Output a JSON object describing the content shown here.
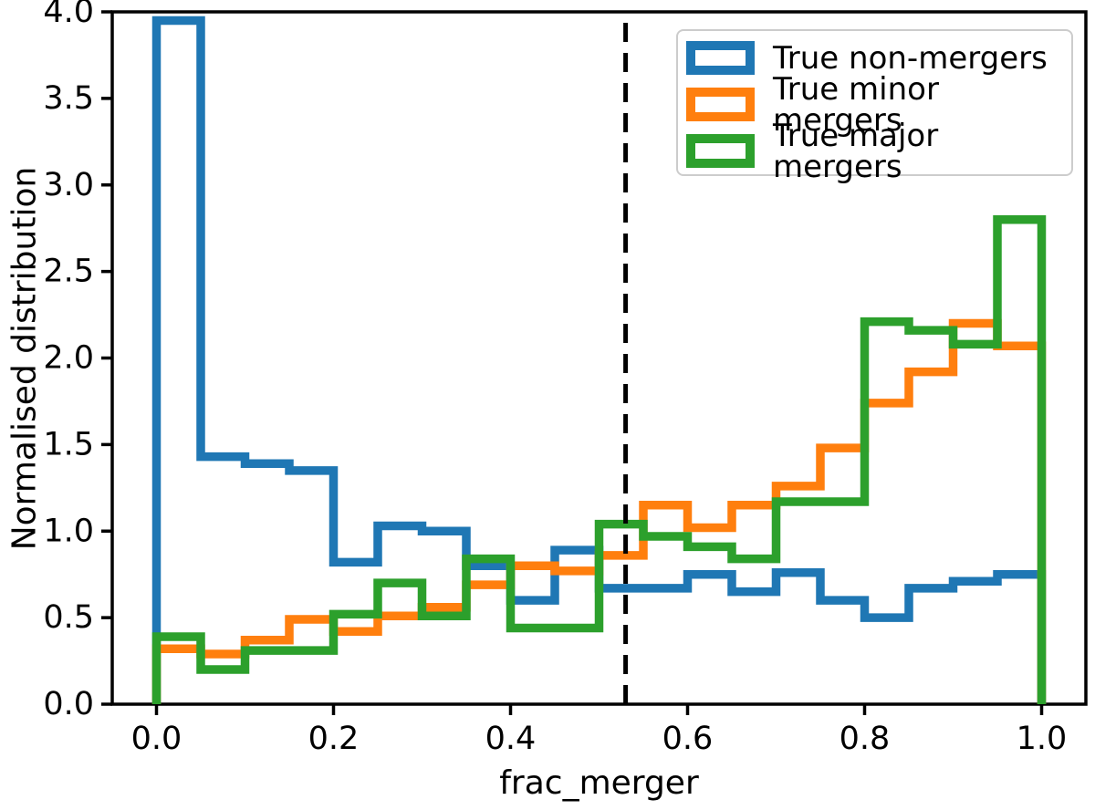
{
  "figure": {
    "xlabel": "frac_merger",
    "ylabel": "Normalised distribution"
  },
  "legend": {
    "position": "upper right",
    "items": [
      {
        "label": "True non-mergers",
        "color": "#1f77b4"
      },
      {
        "label": "True minor mergers",
        "color": "#ff7f0e"
      },
      {
        "label": "True major mergers",
        "color": "#2ca02c"
      }
    ]
  },
  "chart_data": {
    "type": "histogram-step",
    "title": "",
    "xlabel": "frac_merger",
    "ylabel": "Normalised distribution",
    "xlim": [
      -0.05,
      1.05
    ],
    "ylim": [
      0,
      4.0
    ],
    "grid": false,
    "legend_position": "upper right",
    "x_ticks": [
      0.0,
      0.2,
      0.4,
      0.6,
      0.8,
      1.0
    ],
    "x_tick_labels": [
      "0.0",
      "0.2",
      "0.4",
      "0.6",
      "0.8",
      "1.0"
    ],
    "y_ticks": [
      0.0,
      0.5,
      1.0,
      1.5,
      2.0,
      2.5,
      3.0,
      3.5,
      4.0
    ],
    "y_tick_labels": [
      "0.0",
      "0.5",
      "1.0",
      "1.5",
      "2.0",
      "2.5",
      "3.0",
      "3.5",
      "4.0"
    ],
    "bin_edges": [
      0.0,
      0.05,
      0.1,
      0.15,
      0.2,
      0.25,
      0.3,
      0.35,
      0.4,
      0.45,
      0.5,
      0.55,
      0.6,
      0.65,
      0.7,
      0.75,
      0.8,
      0.85,
      0.9,
      0.95,
      1.0
    ],
    "series": [
      {
        "name": "True non-mergers",
        "color": "#1f77b4",
        "values": [
          3.95,
          1.43,
          1.39,
          1.35,
          0.82,
          1.03,
          1.0,
          0.8,
          0.6,
          0.89,
          0.67,
          0.67,
          0.75,
          0.65,
          0.76,
          0.6,
          0.5,
          0.67,
          0.71,
          0.75
        ]
      },
      {
        "name": "True minor mergers",
        "color": "#ff7f0e",
        "values": [
          0.32,
          0.29,
          0.37,
          0.49,
          0.42,
          0.51,
          0.56,
          0.69,
          0.8,
          0.77,
          0.86,
          1.15,
          1.02,
          1.15,
          1.26,
          1.48,
          1.74,
          1.92,
          2.2,
          2.07
        ]
      },
      {
        "name": "True major mergers",
        "color": "#2ca02c",
        "values": [
          0.39,
          0.2,
          0.31,
          0.31,
          0.52,
          0.7,
          0.51,
          0.84,
          0.44,
          0.44,
          1.04,
          0.97,
          0.91,
          0.84,
          1.17,
          1.17,
          2.21,
          2.16,
          2.08,
          2.8
        ]
      }
    ],
    "annotations": [
      {
        "type": "vline",
        "x": 0.53,
        "style": "dashed",
        "color": "#000000"
      }
    ]
  }
}
